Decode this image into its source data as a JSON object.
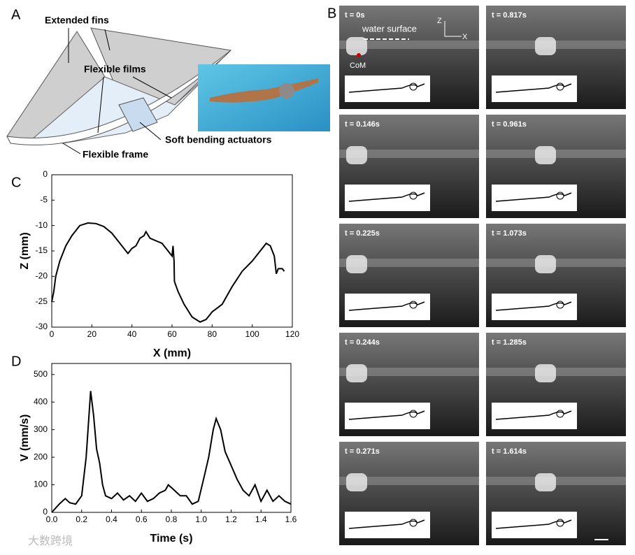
{
  "panel_labels": [
    "A",
    "B",
    "C",
    "D"
  ],
  "diagram": {
    "labels": [
      "Extended fins",
      "Flexible films",
      "Soft bending actuators",
      "Flexible frame"
    ]
  },
  "frames": {
    "water_surface": "water surface",
    "com": "CoM",
    "z": "Z",
    "x": "X",
    "times": [
      "t = 0s",
      "t = 0.146s",
      "t = 0.225s",
      "t = 0.244s",
      "t = 0.271s",
      "t = 0.817s",
      "t = 0.961s",
      "t = 1.073s",
      "t = 1.285s",
      "t = 1.614s"
    ]
  },
  "watermark": "大数跨境",
  "chart_data": [
    {
      "type": "line",
      "xlabel": "X (mm)",
      "ylabel": "Z (mm)",
      "color": "#000000",
      "xlim": [
        0,
        120
      ],
      "xticks": [
        0,
        20,
        40,
        60,
        80,
        100,
        120
      ],
      "ylim": [
        -30,
        0
      ],
      "yticks": [
        0,
        -5,
        -10,
        -15,
        -20,
        -25,
        -30
      ],
      "series": [
        {
          "x": [
            0,
            1,
            2,
            4,
            7,
            10,
            14,
            18,
            22,
            26,
            30,
            33,
            36,
            38,
            40,
            42,
            44,
            46,
            47,
            49,
            52,
            55,
            58,
            60,
            60.5,
            61,
            61.2,
            63,
            66,
            70,
            74,
            77,
            80,
            85,
            90,
            95,
            100,
            104,
            107,
            109,
            111,
            112,
            113,
            115,
            116
          ],
          "values": [
            -25,
            -23,
            -20,
            -17,
            -14,
            -12,
            -10,
            -9.5,
            -9.6,
            -10.2,
            -11.5,
            -13,
            -14.5,
            -15.5,
            -14.5,
            -14,
            -12.5,
            -12,
            -11.2,
            -12.5,
            -13,
            -13.5,
            -15,
            -16,
            -14,
            -17,
            -21,
            -23,
            -25.5,
            -28,
            -29,
            -28.5,
            -27,
            -25.5,
            -22,
            -19,
            -17,
            -15,
            -13.5,
            -14,
            -16,
            -19.5,
            -18.5,
            -18.5,
            -19
          ]
        }
      ]
    },
    {
      "type": "line",
      "xlabel": "Time (s)",
      "ylabel": "V (mm/s)",
      "color": "#000000",
      "xlim": [
        0,
        1.6
      ],
      "xticks": [
        {
          "value": 0,
          "label": "0.0"
        },
        0.2,
        0.4,
        0.6,
        0.8,
        {
          "value": 1,
          "label": "1.0"
        },
        1.2,
        1.4,
        1.6
      ],
      "ylim": [
        0,
        540
      ],
      "yticks": [
        0,
        100,
        200,
        300,
        400,
        500
      ],
      "series": [
        {
          "x": [
            0,
            0.05,
            0.09,
            0.12,
            0.16,
            0.2,
            0.23,
            0.26,
            0.28,
            0.3,
            0.32,
            0.34,
            0.36,
            0.4,
            0.44,
            0.48,
            0.52,
            0.56,
            0.6,
            0.64,
            0.68,
            0.72,
            0.76,
            0.78,
            0.82,
            0.86,
            0.9,
            0.94,
            0.98,
            1.02,
            1.05,
            1.08,
            1.1,
            1.13,
            1.16,
            1.2,
            1.24,
            1.28,
            1.32,
            1.36,
            1.4,
            1.44,
            1.48,
            1.52,
            1.56,
            1.6
          ],
          "values": [
            0,
            30,
            50,
            35,
            30,
            60,
            200,
            440,
            350,
            230,
            180,
            100,
            60,
            50,
            70,
            45,
            60,
            40,
            70,
            40,
            50,
            70,
            80,
            100,
            80,
            60,
            60,
            30,
            40,
            130,
            200,
            300,
            340,
            300,
            220,
            170,
            120,
            80,
            60,
            100,
            40,
            80,
            40,
            60,
            40,
            30
          ]
        }
      ]
    }
  ]
}
